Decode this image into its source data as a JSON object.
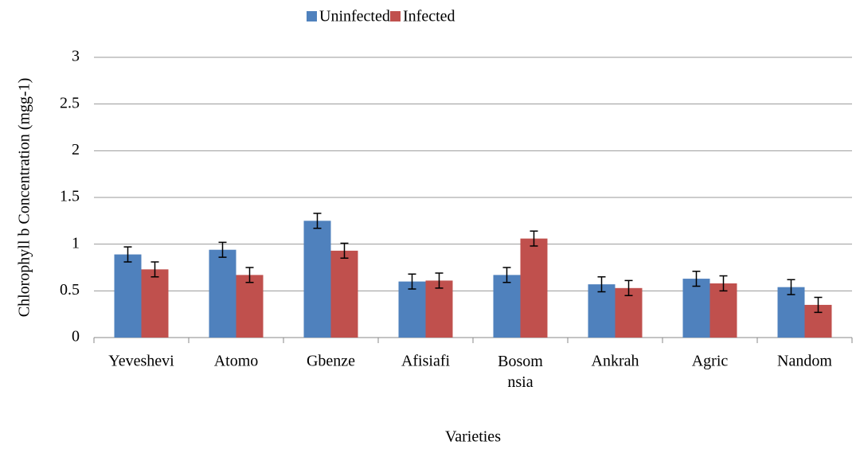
{
  "chart_data": {
    "type": "bar",
    "y_label": "Chlorophyll b Concentration (mgg-1)",
    "x_label": "Varieties",
    "categories": [
      "Yeveshevi",
      "Atomo",
      "Gbenze",
      "Afisiafi",
      "Bosom\nnsia",
      "Ankrah",
      "Agric",
      "Nandom"
    ],
    "series": [
      {
        "name": "Uninfected",
        "color": "#4f81bd",
        "values": [
          0.89,
          0.94,
          1.25,
          0.6,
          0.67,
          0.57,
          0.63,
          0.54
        ],
        "errors": [
          0.08,
          0.08,
          0.08,
          0.08,
          0.08,
          0.08,
          0.08,
          0.08
        ]
      },
      {
        "name": "Infected",
        "color": "#c0504d",
        "values": [
          0.73,
          0.67,
          0.93,
          0.61,
          1.06,
          0.53,
          0.58,
          0.35
        ],
        "errors": [
          0.08,
          0.08,
          0.08,
          0.08,
          0.08,
          0.08,
          0.08,
          0.08
        ]
      }
    ],
    "ylim": [
      0,
      3
    ],
    "yticks": [
      0,
      0.5,
      1,
      1.5,
      2,
      2.5,
      3
    ],
    "grid": true,
    "legend": "top"
  }
}
